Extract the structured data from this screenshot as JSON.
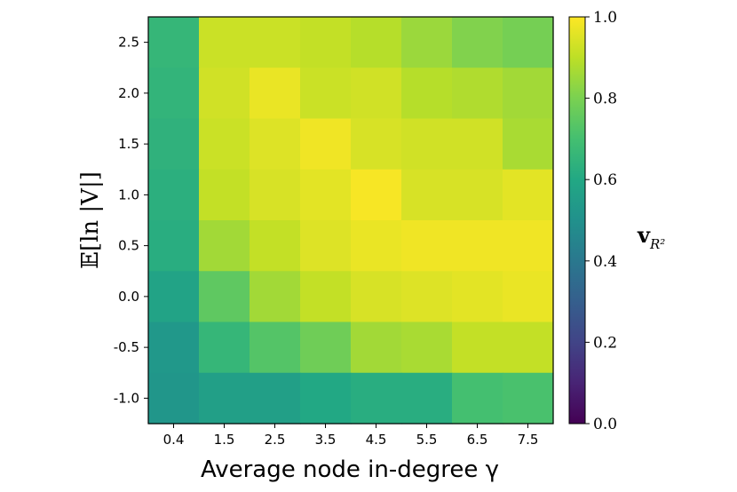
{
  "chart_data": {
    "type": "heatmap",
    "xlabel": "Average node in-degree γ",
    "ylabel": "𝔼[ln |V|]",
    "x_categories": [
      "0.4",
      "1.5",
      "2.5",
      "3.5",
      "4.5",
      "5.5",
      "6.5",
      "7.5"
    ],
    "y_categories": [
      "2.5",
      "2.0",
      "1.5",
      "1.0",
      "0.5",
      "0.0",
      "-0.5",
      "-1.0"
    ],
    "values": [
      [
        0.66,
        0.92,
        0.92,
        0.91,
        0.89,
        0.85,
        0.81,
        0.79
      ],
      [
        0.65,
        0.93,
        0.97,
        0.92,
        0.93,
        0.89,
        0.88,
        0.86
      ],
      [
        0.64,
        0.92,
        0.95,
        0.98,
        0.94,
        0.93,
        0.93,
        0.87
      ],
      [
        0.63,
        0.91,
        0.94,
        0.96,
        0.99,
        0.94,
        0.94,
        0.96
      ],
      [
        0.62,
        0.86,
        0.91,
        0.95,
        0.97,
        0.98,
        0.98,
        0.98
      ],
      [
        0.58,
        0.75,
        0.86,
        0.91,
        0.94,
        0.95,
        0.96,
        0.97
      ],
      [
        0.53,
        0.66,
        0.73,
        0.78,
        0.86,
        0.87,
        0.91,
        0.91
      ],
      [
        0.52,
        0.56,
        0.56,
        0.6,
        0.62,
        0.62,
        0.7,
        0.71
      ]
    ],
    "colorbar": {
      "label": "v",
      "label_subscript": "R²",
      "min": 0.0,
      "max": 1.0,
      "ticks": [
        "0.0",
        "0.2",
        "0.4",
        "0.6",
        "0.8",
        "1.0"
      ],
      "colormap": "viridis"
    }
  }
}
